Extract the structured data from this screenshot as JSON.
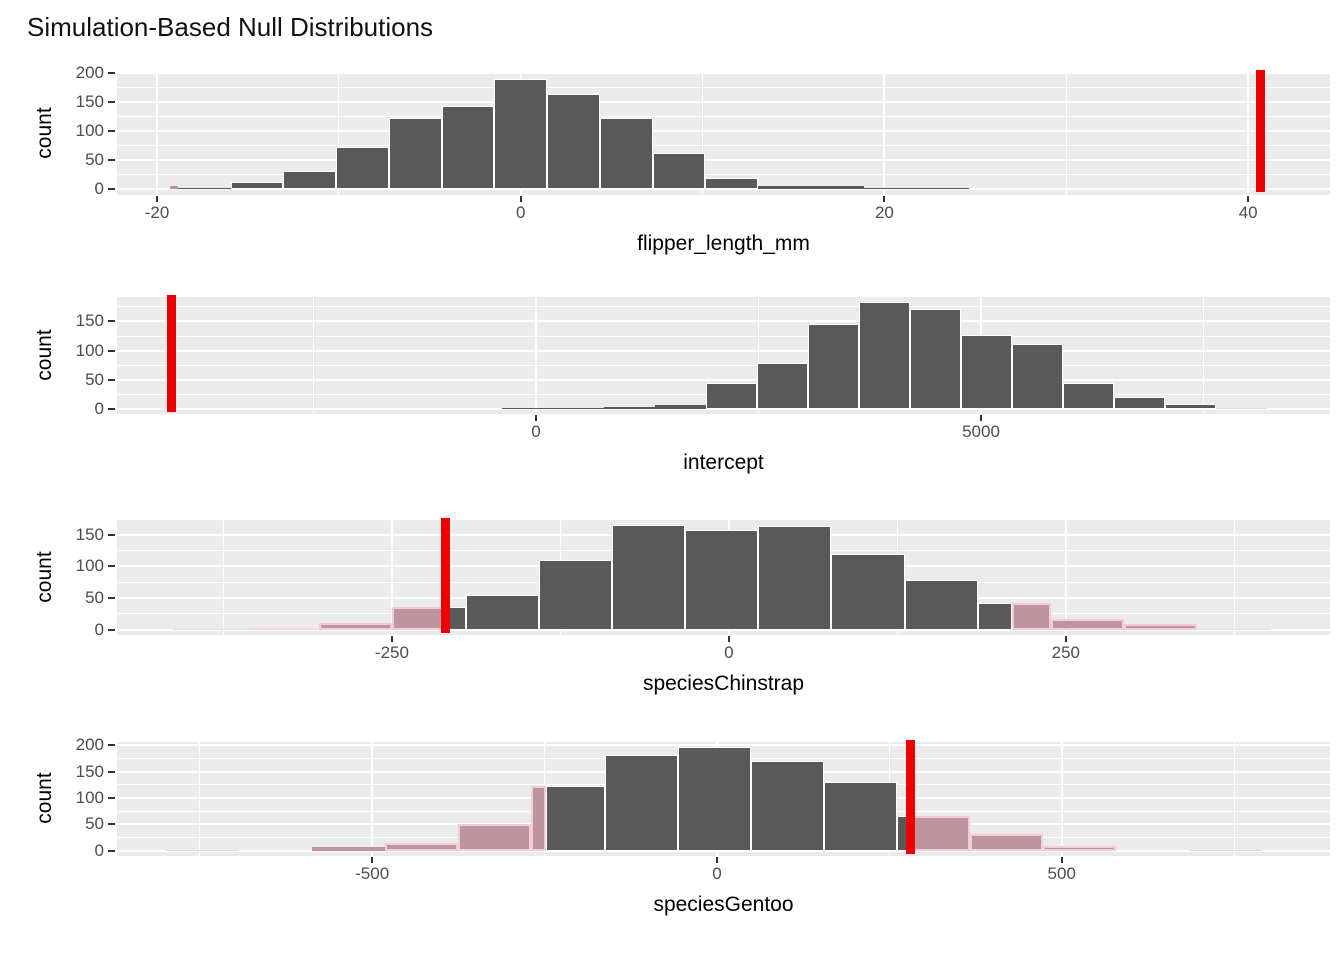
{
  "title": "Simulation-Based Null Distributions",
  "colors": {
    "bar": "#595959",
    "bar_border": "#FFFFFF",
    "shaded_fill": "#BD959E",
    "shaded_border": "#F5CBD5",
    "faint_fill": "#F4DCE2",
    "faint_border": "#F8D2DC",
    "observed_line": "#EE0000",
    "panel_bg": "#EBEBEB",
    "grid": "#FFFFFF",
    "tick_text": "#4D4D4D",
    "axis_text": "#000000"
  },
  "chart_data": [
    {
      "type": "bar",
      "subtype": "histogram-with-observed-stat",
      "xlabel": "flipper_length_mm",
      "ylabel": "count",
      "xlim": [
        -22.2,
        44.5
      ],
      "ylim": [
        -9.6,
        201.6
      ],
      "observed_stat": 40.7,
      "x_ticks": [
        {
          "v": -20,
          "label": "-20"
        },
        {
          "v": 0,
          "label": "0"
        },
        {
          "v": 20,
          "label": "20"
        },
        {
          "v": 40,
          "label": "40"
        }
      ],
      "x_minor": [
        -10,
        10,
        30
      ],
      "y_ticks": [
        {
          "v": 0,
          "label": "0"
        },
        {
          "v": 50,
          "label": "50"
        },
        {
          "v": 100,
          "label": "100"
        },
        {
          "v": 150,
          "label": "150"
        },
        {
          "v": 200,
          "label": "200"
        }
      ],
      "y_minor": [
        25,
        75,
        125,
        175
      ],
      "bars": [
        {
          "x0": -19.3,
          "x1": -18.85,
          "count": 5,
          "style": "pink"
        },
        {
          "x0": -18.85,
          "x1": -15.95,
          "count": 3
        },
        {
          "x0": -15.95,
          "x1": -13.05,
          "count": 13
        },
        {
          "x0": -13.05,
          "x1": -10.15,
          "count": 31
        },
        {
          "x0": -10.15,
          "x1": -7.25,
          "count": 73
        },
        {
          "x0": -7.25,
          "x1": -4.35,
          "count": 122
        },
        {
          "x0": -4.35,
          "x1": -1.45,
          "count": 144
        },
        {
          "x0": -1.45,
          "x1": 1.45,
          "count": 190
        },
        {
          "x0": 1.45,
          "x1": 4.35,
          "count": 163
        },
        {
          "x0": 4.35,
          "x1": 7.25,
          "count": 122
        },
        {
          "x0": 7.25,
          "x1": 10.15,
          "count": 62
        },
        {
          "x0": 10.15,
          "x1": 13.05,
          "count": 20
        },
        {
          "x0": 13.05,
          "x1": 15.95,
          "count": 5
        },
        {
          "x0": 15.95,
          "x1": 18.85,
          "count": 5
        },
        {
          "x0": 18.85,
          "x1": 21.75,
          "count": 1
        },
        {
          "x0": 21.75,
          "x1": 24.65,
          "count": 1
        }
      ]
    },
    {
      "type": "bar",
      "subtype": "histogram-with-observed-stat",
      "xlabel": "intercept",
      "ylabel": "count",
      "xlim": [
        -4708,
        8921
      ],
      "ylim": [
        -9.15,
        192.15
      ],
      "observed_stat": -4101,
      "x_ticks": [
        {
          "v": 0,
          "label": "0"
        },
        {
          "v": 5000,
          "label": "5000"
        }
      ],
      "x_minor": [
        -2500,
        2500,
        7500
      ],
      "y_ticks": [
        {
          "v": 0,
          "label": "0"
        },
        {
          "v": 50,
          "label": "50"
        },
        {
          "v": 100,
          "label": "100"
        },
        {
          "v": 150,
          "label": "150"
        }
      ],
      "y_minor": [
        25,
        75,
        125,
        175
      ],
      "bars": [
        {
          "x0": -382,
          "x1": 191,
          "count": 1
        },
        {
          "x0": 191,
          "x1": 764,
          "count": 2
        },
        {
          "x0": 764,
          "x1": 1337,
          "count": 3
        },
        {
          "x0": 1337,
          "x1": 1910,
          "count": 6
        },
        {
          "x0": 1910,
          "x1": 2483,
          "count": 45
        },
        {
          "x0": 2483,
          "x1": 3056,
          "count": 78
        },
        {
          "x0": 3056,
          "x1": 3629,
          "count": 145
        },
        {
          "x0": 3629,
          "x1": 4202,
          "count": 183
        },
        {
          "x0": 4202,
          "x1": 4775,
          "count": 172
        },
        {
          "x0": 4775,
          "x1": 5348,
          "count": 127
        },
        {
          "x0": 5348,
          "x1": 5921,
          "count": 111
        },
        {
          "x0": 5921,
          "x1": 6494,
          "count": 45
        },
        {
          "x0": 6494,
          "x1": 7067,
          "count": 20
        },
        {
          "x0": 7067,
          "x1": 7640,
          "count": 8
        },
        {
          "x0": 7640,
          "x1": 8213,
          "count": 2,
          "style": "faint"
        }
      ]
    },
    {
      "type": "bar",
      "subtype": "histogram-with-observed-stat",
      "xlabel": "speciesChinstrap",
      "ylabel": "count",
      "xlim": [
        -454,
        446
      ],
      "ylim": [
        -8.25,
        173.25
      ],
      "observed_stat": -210,
      "x_ticks": [
        {
          "v": -250,
          "label": "-250"
        },
        {
          "v": 0,
          "label": "0"
        },
        {
          "v": 250,
          "label": "250"
        }
      ],
      "x_minor": [
        -375,
        -125,
        125,
        375
      ],
      "y_ticks": [
        {
          "v": 0,
          "label": "0"
        },
        {
          "v": 50,
          "label": "50"
        },
        {
          "v": 100,
          "label": "100"
        },
        {
          "v": 150,
          "label": "150"
        }
      ],
      "y_minor": [
        25,
        75,
        125
      ],
      "bars": [
        {
          "x0": -412.6,
          "x1": -358.3,
          "count": 2,
          "style": "faint"
        },
        {
          "x0": -358.3,
          "x1": -304,
          "count": 3,
          "style": "faint"
        },
        {
          "x0": -304,
          "x1": -249.7,
          "count": 11,
          "style": "pink"
        },
        {
          "x0": -249.7,
          "x1": -210,
          "count": 36,
          "style": "pink"
        },
        {
          "x0": -210,
          "x1": -195.4,
          "count": 36
        },
        {
          "x0": -195.4,
          "x1": -141.1,
          "count": 55
        },
        {
          "x0": -141.1,
          "x1": -86.8,
          "count": 110
        },
        {
          "x0": -86.8,
          "x1": -32.5,
          "count": 165
        },
        {
          "x0": -32.5,
          "x1": 21.8,
          "count": 158
        },
        {
          "x0": 21.8,
          "x1": 76.1,
          "count": 163
        },
        {
          "x0": 76.1,
          "x1": 130.4,
          "count": 120
        },
        {
          "x0": 130.4,
          "x1": 184.7,
          "count": 78
        },
        {
          "x0": 184.7,
          "x1": 210,
          "count": 43
        },
        {
          "x0": 210,
          "x1": 239,
          "count": 43,
          "style": "pink"
        },
        {
          "x0": 239,
          "x1": 293.3,
          "count": 17,
          "style": "pink"
        },
        {
          "x0": 293.3,
          "x1": 347.6,
          "count": 9,
          "style": "pink"
        },
        {
          "x0": 347.6,
          "x1": 401.9,
          "count": 2,
          "style": "faint"
        }
      ]
    },
    {
      "type": "bar",
      "subtype": "histogram-with-observed-stat",
      "xlabel": "speciesGentoo",
      "ylabel": "count",
      "xlim": [
        -870,
        889
      ],
      "ylim": [
        -9.8,
        205.8
      ],
      "observed_stat": 281,
      "x_ticks": [
        {
          "v": -500,
          "label": "-500"
        },
        {
          "v": 0,
          "label": "0"
        },
        {
          "v": 500,
          "label": "500"
        }
      ],
      "x_minor": [
        -750,
        -250,
        250,
        750
      ],
      "y_ticks": [
        {
          "v": 0,
          "label": "0"
        },
        {
          "v": 50,
          "label": "50"
        },
        {
          "v": 100,
          "label": "100"
        },
        {
          "v": 150,
          "label": "150"
        },
        {
          "v": 200,
          "label": "200"
        }
      ],
      "y_minor": [
        25,
        75,
        125,
        175
      ],
      "bars": [
        {
          "x0": -799,
          "x1": -693,
          "count": 1,
          "style": "faint"
        },
        {
          "x0": -587,
          "x1": -481,
          "count": 7,
          "style": "pink"
        },
        {
          "x0": -481,
          "x1": -375,
          "count": 14,
          "style": "pink"
        },
        {
          "x0": -375,
          "x1": -269,
          "count": 50,
          "style": "pink"
        },
        {
          "x0": -269,
          "x1": -248,
          "count": 123,
          "style": "pink"
        },
        {
          "x0": -248,
          "x1": -163,
          "count": 123
        },
        {
          "x0": -163,
          "x1": -57,
          "count": 181
        },
        {
          "x0": -57,
          "x1": 49,
          "count": 196
        },
        {
          "x0": 49,
          "x1": 155,
          "count": 170
        },
        {
          "x0": 155,
          "x1": 261,
          "count": 130
        },
        {
          "x0": 261,
          "x1": 281,
          "count": 66
        },
        {
          "x0": 281,
          "x1": 367,
          "count": 66,
          "style": "pink"
        },
        {
          "x0": 367,
          "x1": 473,
          "count": 32,
          "style": "pink"
        },
        {
          "x0": 473,
          "x1": 579,
          "count": 10,
          "style": "pink"
        },
        {
          "x0": 685,
          "x1": 791,
          "count": 2,
          "style": "faint"
        }
      ]
    }
  ]
}
